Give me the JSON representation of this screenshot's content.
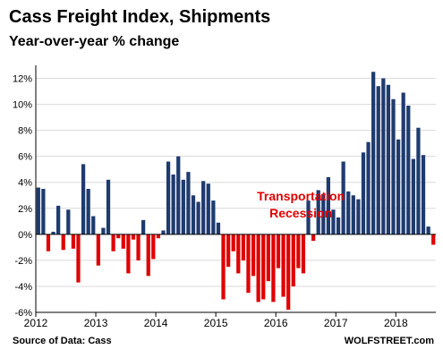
{
  "colors": {
    "positive": "#1f3b6e",
    "negative": "#e00000",
    "grid": "#d9d9d9",
    "axis": "#000000",
    "annotation": "#e00000"
  },
  "chart_data": {
    "type": "bar",
    "title": "Cass Freight Index, Shipments",
    "subtitle": "Year-over-year % change",
    "xlabel": "",
    "ylabel": "",
    "ylim": [
      -6,
      13
    ],
    "y_ticks": [
      "12%",
      "10%",
      "8%",
      "6%",
      "4%",
      "2%",
      "0%",
      "-2%",
      "-4%",
      "-6%"
    ],
    "y_tick_values": [
      12,
      10,
      8,
      6,
      4,
      2,
      0,
      -2,
      -4,
      -6
    ],
    "x_ticks": [
      "2012",
      "2013",
      "2014",
      "2015",
      "2016",
      "2017",
      "2018"
    ],
    "x_tick_months": [
      0,
      12,
      24,
      36,
      48,
      60,
      72
    ],
    "grid": true,
    "legend": "none",
    "annotation": {
      "lines": [
        "Transportation",
        "Recession"
      ],
      "at_month": 53,
      "at_value": 2.6
    },
    "series": [
      {
        "values": [
          3.6,
          3.5,
          -1.3,
          0.2,
          2.2,
          -1.2,
          1.9,
          -1.1,
          -3.7,
          5.4,
          3.5,
          1.4,
          -2.4,
          0.5,
          4.2,
          -1.3,
          -0.3,
          -1.1,
          -3.0,
          -0.4,
          -2.0,
          1.1,
          -3.2,
          -1.9,
          -0.3,
          0.3,
          5.6,
          4.6,
          6.0,
          4.2,
          4.8,
          3.0,
          2.5,
          4.1,
          3.9,
          2.6,
          0.9,
          -5.0,
          -2.5,
          -1.3,
          -3.0,
          -2.0,
          -4.5,
          -3.2,
          -5.2,
          -5.0,
          -3.6,
          -5.2,
          -2.6,
          -4.8,
          -5.8,
          -4.0,
          -2.6,
          -3.0,
          2.6,
          -0.5,
          3.4,
          3.1,
          4.4,
          1.9,
          1.3,
          5.6,
          3.3,
          3.0,
          2.7,
          6.3,
          7.1,
          12.5,
          11.4,
          12.0,
          11.5,
          10.4,
          7.3,
          10.9,
          9.9,
          5.8,
          8.2,
          6.1,
          0.6,
          -0.8
        ]
      }
    ]
  },
  "footer": {
    "source": "Source of Data: Cass",
    "brand": "WOLFSTREET.com"
  }
}
